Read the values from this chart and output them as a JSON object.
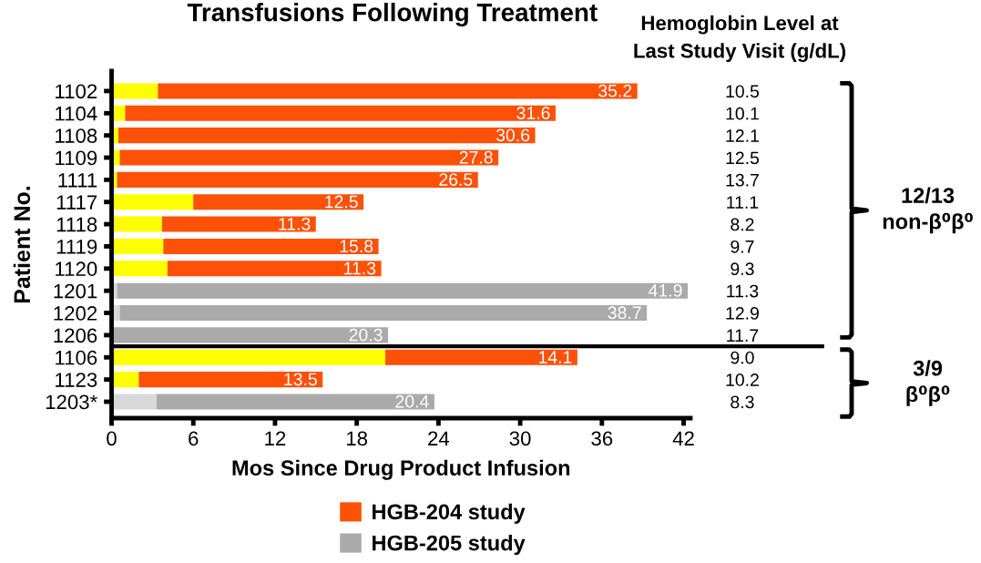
{
  "chart_data": {
    "type": "bar",
    "orientation": "horizontal",
    "stacked": true,
    "title": "Transfusions Following Treatment",
    "xlabel": "Mos Since Drug Product Infusion",
    "ylabel": "Patient No.",
    "y2label": "Hemoglobin Level at\nLast Study Visit (g/dL)",
    "categories": [
      "1102",
      "1104",
      "1108",
      "1109",
      "1111",
      "1117",
      "1118",
      "1119",
      "1120",
      "1201",
      "1202",
      "1206",
      "1106",
      "1123",
      "1203*"
    ],
    "y2_categories": [
      "10.5",
      "10.1",
      "12.1",
      "12.5",
      "13.7",
      "11.1",
      "8.2",
      "9.7",
      "9.3",
      "11.3",
      "12.9",
      "11.7",
      "9.0",
      "10.2",
      "8.3"
    ],
    "series": [
      {
        "colors": [
          "#ffff00",
          "#ffff00",
          "#ffff00",
          "#ffff00",
          "#ffff00",
          "#ffff00",
          "#ffff00",
          "#ffff00",
          "#ffff00",
          "#d9d9d9",
          "#d9d9d9",
          "#d9d9d9",
          "#ffff00",
          "#ffff00",
          "#d9d9d9"
        ],
        "values": [
          3.4,
          1.0,
          0.5,
          0.6,
          0.4,
          6.0,
          3.7,
          3.8,
          4.1,
          0.4,
          0.6,
          null,
          20.1,
          2.0,
          3.3
        ]
      },
      {
        "name": "HGB-204 study",
        "color": "#fe5108",
        "values": [
          35.2,
          31.6,
          30.6,
          27.8,
          26.5,
          12.5,
          11.3,
          15.8,
          15.7,
          null,
          null,
          null,
          14.1,
          13.5,
          null
        ],
        "value_labels": [
          "35.2",
          "31.6",
          "30.6",
          "27.8",
          "26.5",
          "12.5",
          "11.3",
          "15.8",
          null,
          null,
          null,
          null,
          "14.1",
          "13.5",
          null
        ]
      },
      {
        "name": "HGB-205 study",
        "color": "#aaaaaa",
        "values": [
          null,
          null,
          null,
          null,
          null,
          null,
          null,
          null,
          null,
          41.9,
          38.7,
          20.3,
          null,
          null,
          20.4
        ],
        "value_labels": [
          null,
          null,
          null,
          null,
          null,
          null,
          null,
          null,
          null,
          "41.9",
          "38.7",
          "20.3",
          null,
          null,
          "20.4"
        ]
      }
    ],
    "xlim": [
      0,
      42.5
    ],
    "xticks": [
      0,
      6,
      12,
      18,
      24,
      30,
      36,
      42
    ],
    "annotations": [
      "12/13\nnon-β⁰β⁰",
      "3/9\nβ⁰β⁰",
      {
        "text": "11.3",
        "x": 19.8,
        "y": "1120"
      }
    ],
    "legend": "bottom"
  }
}
